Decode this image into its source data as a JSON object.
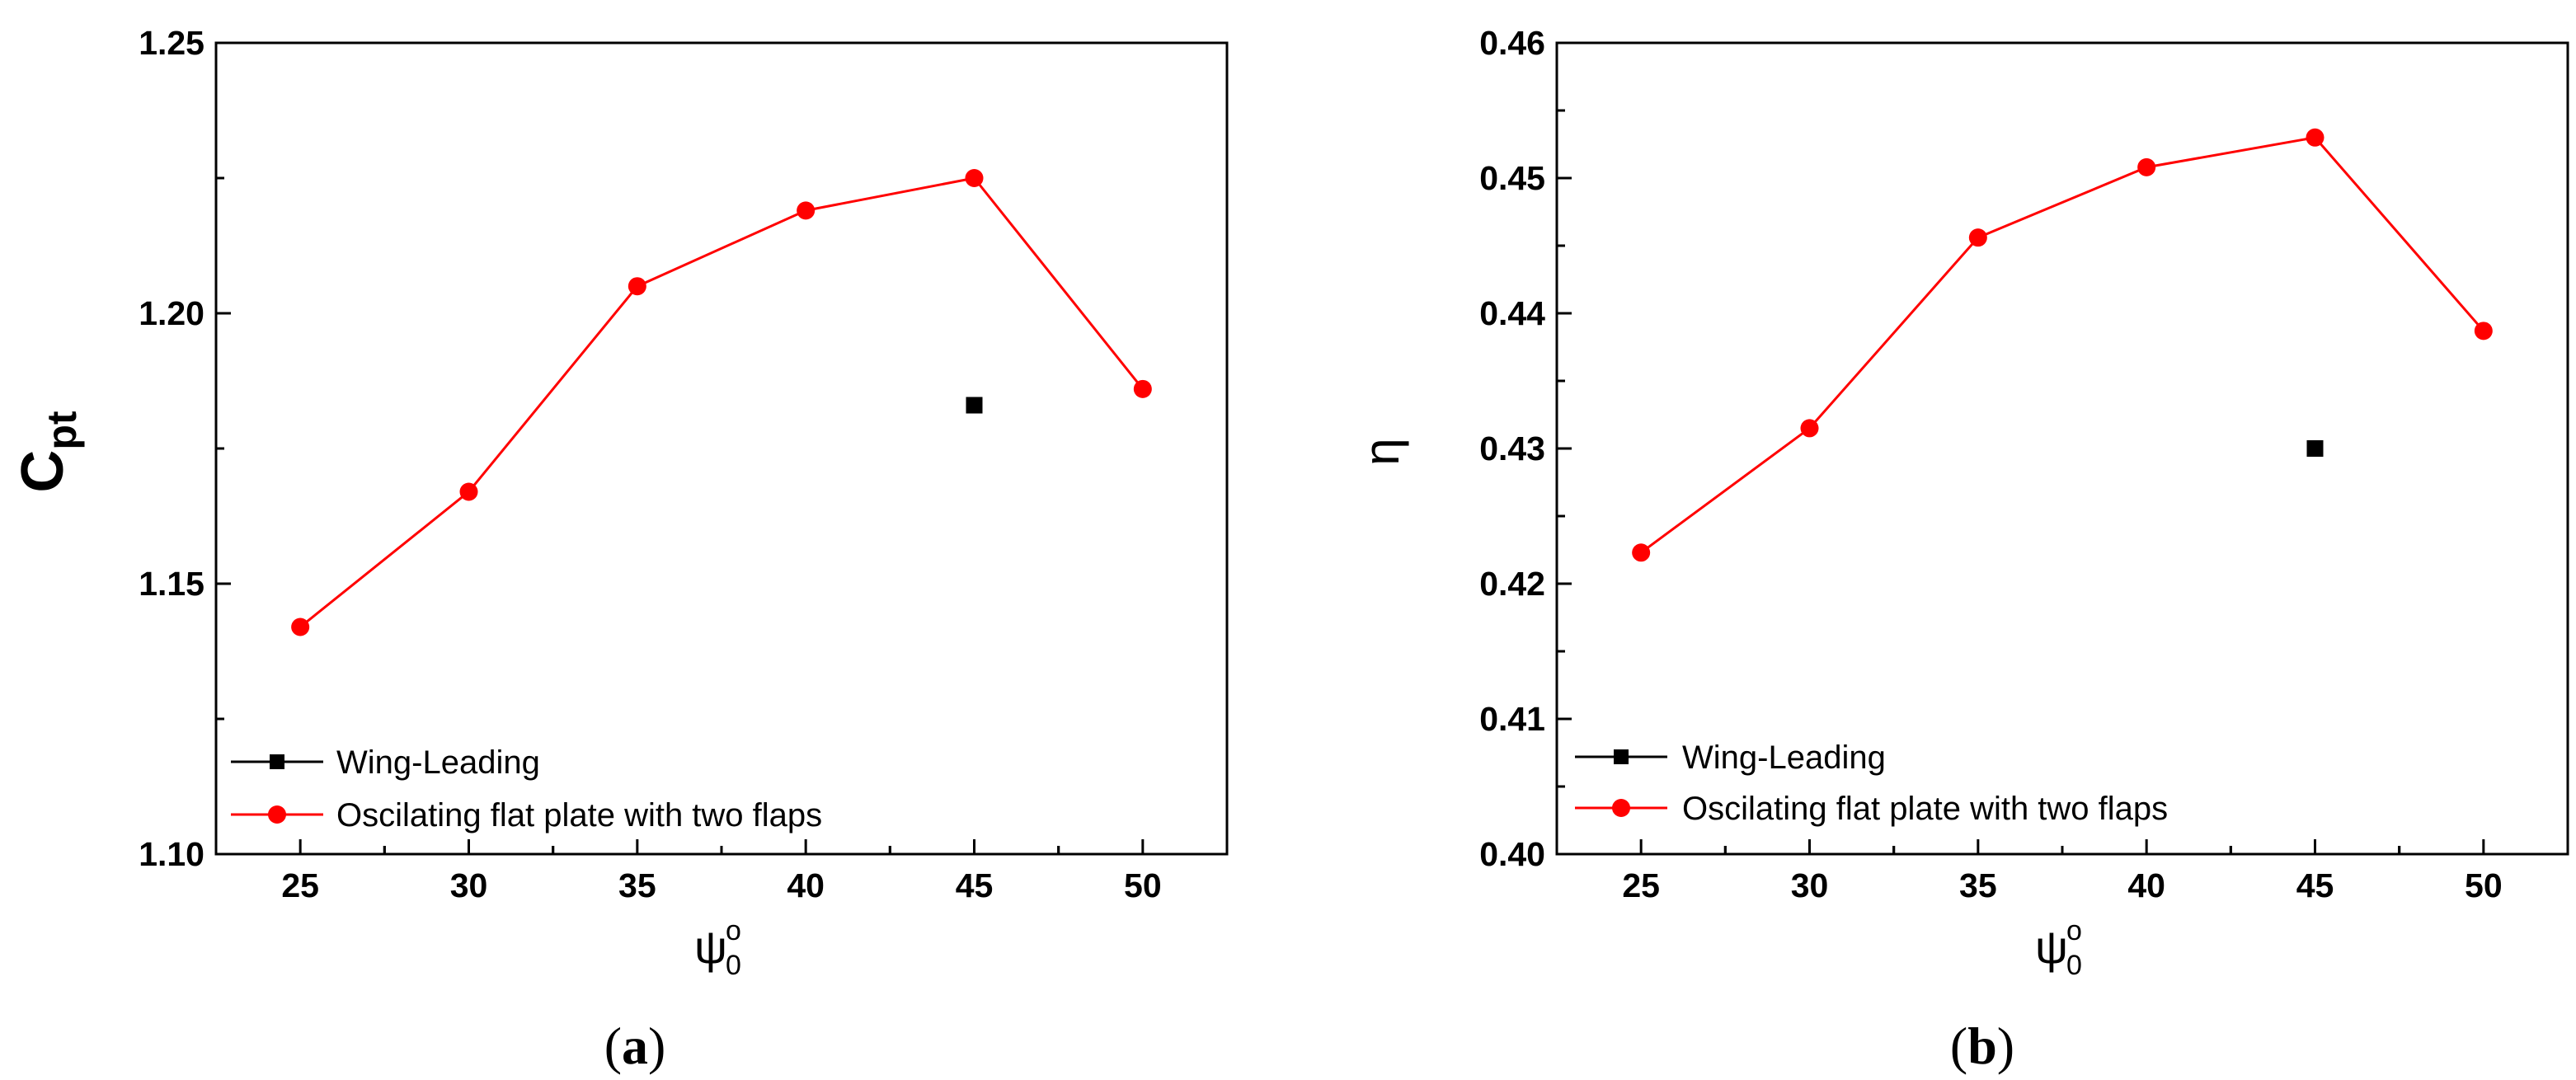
{
  "chart_data": [
    {
      "type": "line",
      "panel": "a",
      "caption": "a",
      "xlabel_symbol": "ψ",
      "xlabel_sup": "o",
      "xlabel_sub": "0",
      "ylabel_main": "C",
      "ylabel_sub": "pt",
      "xlim": [
        22.5,
        52.5
      ],
      "ylim": [
        1.1,
        1.25
      ],
      "xticks": [
        25,
        30,
        35,
        40,
        45,
        50
      ],
      "yticks": [
        1.1,
        1.15,
        1.2,
        1.25
      ],
      "ytick_labels": [
        "1.10",
        "1.15",
        "1.20",
        "1.25"
      ],
      "legend_position": "bottom-left",
      "series": [
        {
          "name": "Wing-Leading",
          "color": "#000000",
          "marker": "square",
          "line": false,
          "x": [
            45
          ],
          "y": [
            1.183
          ]
        },
        {
          "name": "Oscilating flat plate with two flaps",
          "color": "#ff0000",
          "marker": "circle",
          "line": true,
          "x": [
            25,
            30,
            35,
            40,
            45,
            50
          ],
          "y": [
            1.142,
            1.167,
            1.205,
            1.219,
            1.225,
            1.186
          ]
        }
      ]
    },
    {
      "type": "line",
      "panel": "b",
      "caption": "b",
      "xlabel_symbol": "ψ",
      "xlabel_sup": "o",
      "xlabel_sub": "0",
      "ylabel_main": "η",
      "ylabel_sub": "",
      "xlim": [
        22.5,
        52.5
      ],
      "ylim": [
        0.4,
        0.46
      ],
      "xticks": [
        25,
        30,
        35,
        40,
        45,
        50
      ],
      "yticks": [
        0.4,
        0.41,
        0.42,
        0.43,
        0.44,
        0.45,
        0.46
      ],
      "ytick_labels": [
        "0.40",
        "0.41",
        "0.42",
        "0.43",
        "0.44",
        "0.45",
        "0.46"
      ],
      "legend_position": "bottom-left",
      "series": [
        {
          "name": "Wing-Leading",
          "color": "#000000",
          "marker": "square",
          "line": false,
          "x": [
            45
          ],
          "y": [
            0.43
          ]
        },
        {
          "name": "Oscilating flat plate with two flaps",
          "color": "#ff0000",
          "marker": "circle",
          "line": true,
          "x": [
            25,
            30,
            35,
            40,
            45,
            50
          ],
          "y": [
            0.4223,
            0.4315,
            0.4456,
            0.4508,
            0.453,
            0.4387
          ]
        }
      ]
    }
  ]
}
